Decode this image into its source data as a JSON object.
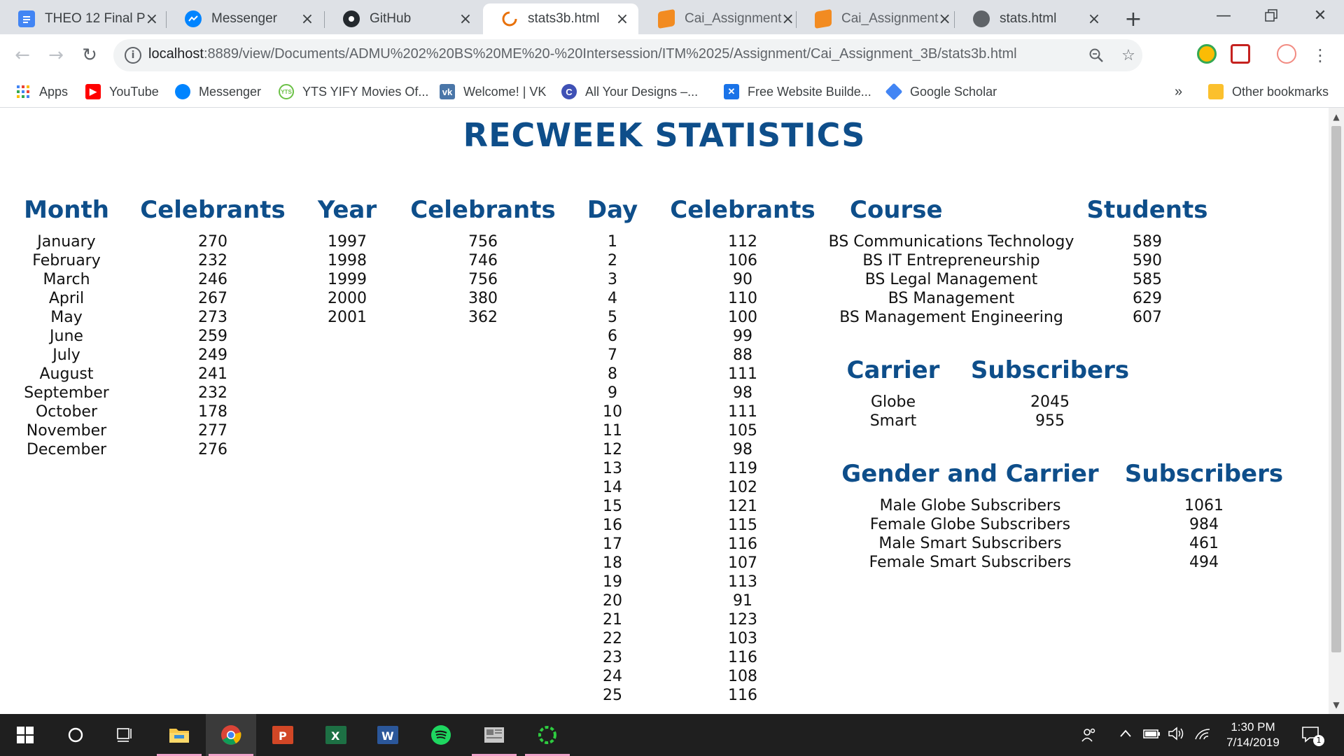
{
  "browser": {
    "tabs": [
      {
        "label": "THEO 12 Final P",
        "icon": "docs-icon",
        "color": "#4285f4"
      },
      {
        "label": "Messenger",
        "icon": "messenger-icon",
        "color": "#0084ff"
      },
      {
        "label": "GitHub",
        "icon": "github-icon",
        "color": "#24292e"
      },
      {
        "label": "stats3b.html",
        "icon": "loading-icon",
        "color": "#e8710a",
        "active": true
      },
      {
        "label": "Cai_Assignment",
        "icon": "sublime-icon",
        "color": "#f28b21"
      },
      {
        "label": "Cai_Assignment",
        "icon": "sublime-icon",
        "color": "#f28b21"
      },
      {
        "label": "stats.html",
        "icon": "globe-icon",
        "color": "#5f6368"
      }
    ],
    "url_host": "localhost",
    "url_path": ":8889/view/Documents/ADMU%202%20BS%20ME%20-%20Intersession/ITM%2025/Assignment/Cai_Assignment_3B/stats3b.html",
    "bookmarks": [
      {
        "label": "Apps",
        "icon": "apps-grid-icon",
        "color": "#4285f4"
      },
      {
        "label": "YouTube",
        "icon": "youtube-icon",
        "color": "#ff0000"
      },
      {
        "label": "Messenger",
        "icon": "messenger-icon",
        "color": "#0084ff"
      },
      {
        "label": "YTS YIFY Movies Of...",
        "icon": "yts-icon",
        "color": "#6ac045"
      },
      {
        "label": "Welcome! | VK",
        "icon": "vk-icon",
        "color": "#4a76a8"
      },
      {
        "label": "All Your Designs –...",
        "icon": "canva-icon",
        "color": "#3f51b5"
      },
      {
        "label": "Free Website Builde...",
        "icon": "wix-icon",
        "color": "#1a73e8"
      },
      {
        "label": "Google Scholar",
        "icon": "scholar-icon",
        "color": "#4285f4"
      }
    ],
    "bookmarks_overflow": "»",
    "other_bookmarks": "Other bookmarks"
  },
  "page": {
    "title": "RECWEEK STATISTICS",
    "month": {
      "headers": [
        "Month",
        "Celebrants"
      ],
      "labels": [
        "January",
        "February",
        "March",
        "April",
        "May",
        "June",
        "July",
        "August",
        "September",
        "October",
        "November",
        "December"
      ],
      "values": [
        "270",
        "232",
        "246",
        "267",
        "273",
        "259",
        "249",
        "241",
        "232",
        "178",
        "277",
        "276"
      ]
    },
    "year": {
      "headers": [
        "Year",
        "Celebrants"
      ],
      "labels": [
        "1997",
        "1998",
        "1999",
        "2000",
        "2001"
      ],
      "values": [
        "756",
        "746",
        "756",
        "380",
        "362"
      ]
    },
    "day": {
      "headers": [
        "Day",
        "Celebrants"
      ],
      "labels": [
        "1",
        "2",
        "3",
        "4",
        "5",
        "6",
        "7",
        "8",
        "9",
        "10",
        "11",
        "12",
        "13",
        "14",
        "15",
        "16",
        "17",
        "18",
        "19",
        "20",
        "21",
        "22",
        "23",
        "24",
        "25"
      ],
      "values": [
        "112",
        "106",
        "90",
        "110",
        "100",
        "99",
        "88",
        "111",
        "98",
        "111",
        "105",
        "98",
        "119",
        "102",
        "121",
        "115",
        "116",
        "107",
        "113",
        "91",
        "123",
        "103",
        "116",
        "108",
        "116"
      ]
    },
    "course": {
      "headers": [
        "Course",
        "Students"
      ],
      "labels": [
        "BS Communications Technology",
        "BS IT Entrepreneurship",
        "BS Legal Management",
        "BS Management",
        "BS Management Engineering"
      ],
      "values": [
        "589",
        "590",
        "585",
        "629",
        "607"
      ]
    },
    "carrier": {
      "headers": [
        "Carrier",
        "Subscribers"
      ],
      "labels": [
        "Globe",
        "Smart"
      ],
      "values": [
        "2045",
        "955"
      ]
    },
    "gender": {
      "headers": [
        "Gender and Carrier",
        "Subscribers"
      ],
      "labels": [
        "Male Globe Subscribers",
        "Female Globe Subscribers",
        "Male Smart Subscribers",
        "Female Smart Subscribers"
      ],
      "values": [
        "1061",
        "984",
        "461",
        "494"
      ]
    }
  },
  "taskbar": {
    "time": "1:30 PM",
    "date": "7/14/2019",
    "notification_count": "1"
  }
}
